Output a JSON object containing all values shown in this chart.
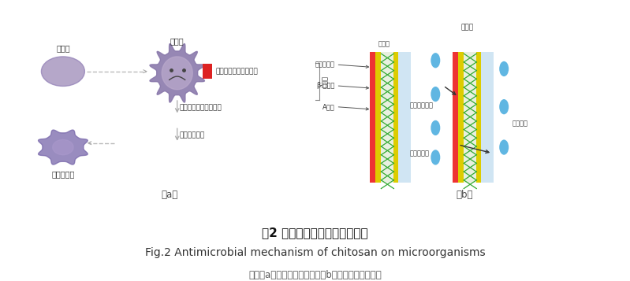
{
  "title_chinese": "图2 壳聚糖对微生物的抑菌机理",
  "title_english": "Fig.2 Antimicrobial mechanism of chitosan on microorganisms",
  "note": "注：（a）对细菌的抑菌机制（b）对真菌的抑菌机制",
  "label_a": "（a）",
  "label_b": "（b）",
  "bg_color": "#ffffff",
  "chitosan_color": "#a898c0",
  "microbe_outer": "#8877aa",
  "microbe_inner": "#bbaacc",
  "dead_microbe_color": "#7766aa",
  "red_rect": "#dd2222",
  "wall_red": "#ee3333",
  "wall_yellow": "#ddcc00",
  "wall_green_cross": "#22aa22",
  "wall_bg": "#c8ddf0",
  "cyan_drop": "#55aadd",
  "arrow_color": "#999999",
  "text_color": "#333333",
  "label_color": "#555555",
  "title_cn_bold": true,
  "title_cn_fontsize": 11,
  "title_en_fontsize": 10,
  "note_fontsize": 8.5
}
